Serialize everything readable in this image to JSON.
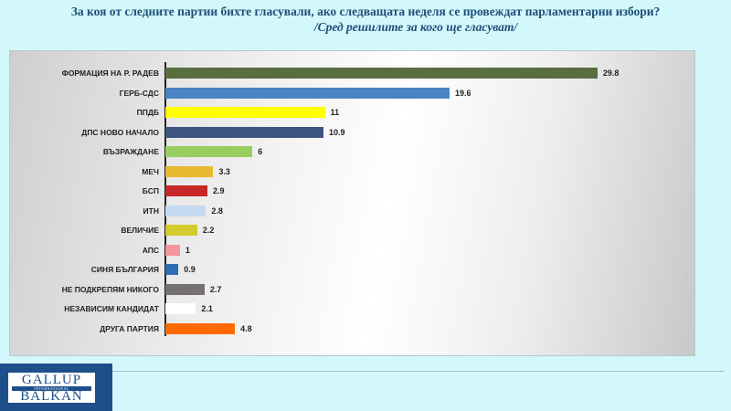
{
  "title": {
    "line1": "За коя от следните партии бихте  гласували,  ако следващата неделя се провеждат парламентарни избори?",
    "line2": "/Сред решилите за кого ще гласуват/"
  },
  "logo": {
    "line1": "GALLUP",
    "line2": "INTERNATIONAL",
    "line3": "BALKAN"
  },
  "colors": {
    "background": "#d3f8fb",
    "title": "#1f4e79",
    "logo_bg": "#1e4f8a"
  },
  "chart_data": {
    "type": "bar",
    "orientation": "horizontal",
    "title": "За коя от следните партии бихте гласували, ако следващата неделя се провеждат парламентарни избори? /Сред решилите за кого ще гласуват/",
    "xlabel": "",
    "ylabel": "",
    "grid": false,
    "legend": "none",
    "xlim": [
      0,
      35
    ],
    "categories": [
      "ФОРМАЦИЯ НА Р. РАДЕВ",
      "ГЕРБ-СДС",
      "ППДБ",
      "ДПС НОВО НАЧАЛО",
      "ВЪЗРАЖДАНЕ",
      "МЕЧ",
      "БСП",
      "ИТН",
      "ВЕЛИЧИЕ",
      "АПС",
      "СИНЯ БЪЛГАРИЯ",
      "НЕ ПОДКРЕПЯМ НИКОГО",
      "НЕЗАВИСИМ КАНДИДАТ",
      "ДРУГА ПАРТИЯ"
    ],
    "values": [
      29.8,
      19.6,
      11,
      10.9,
      6,
      3.3,
      2.9,
      2.8,
      2.2,
      1,
      0.9,
      2.7,
      2.1,
      4.8
    ],
    "bar_colors": [
      "#586e3f",
      "#4a84c4",
      "#ffff00",
      "#3d5480",
      "#9acd60",
      "#e8b830",
      "#c62828",
      "#c5daf0",
      "#d4cc2c",
      "#f4949c",
      "#2e6bb0",
      "#767171",
      "#ffffff",
      "#ff6a00"
    ],
    "value_labels": [
      "29.8",
      "19.6",
      "11",
      "10.9",
      "6",
      "3.3",
      "2.9",
      "2.8",
      "2.2",
      "1",
      "0.9",
      "2.7",
      "2.1",
      "4.8"
    ]
  }
}
